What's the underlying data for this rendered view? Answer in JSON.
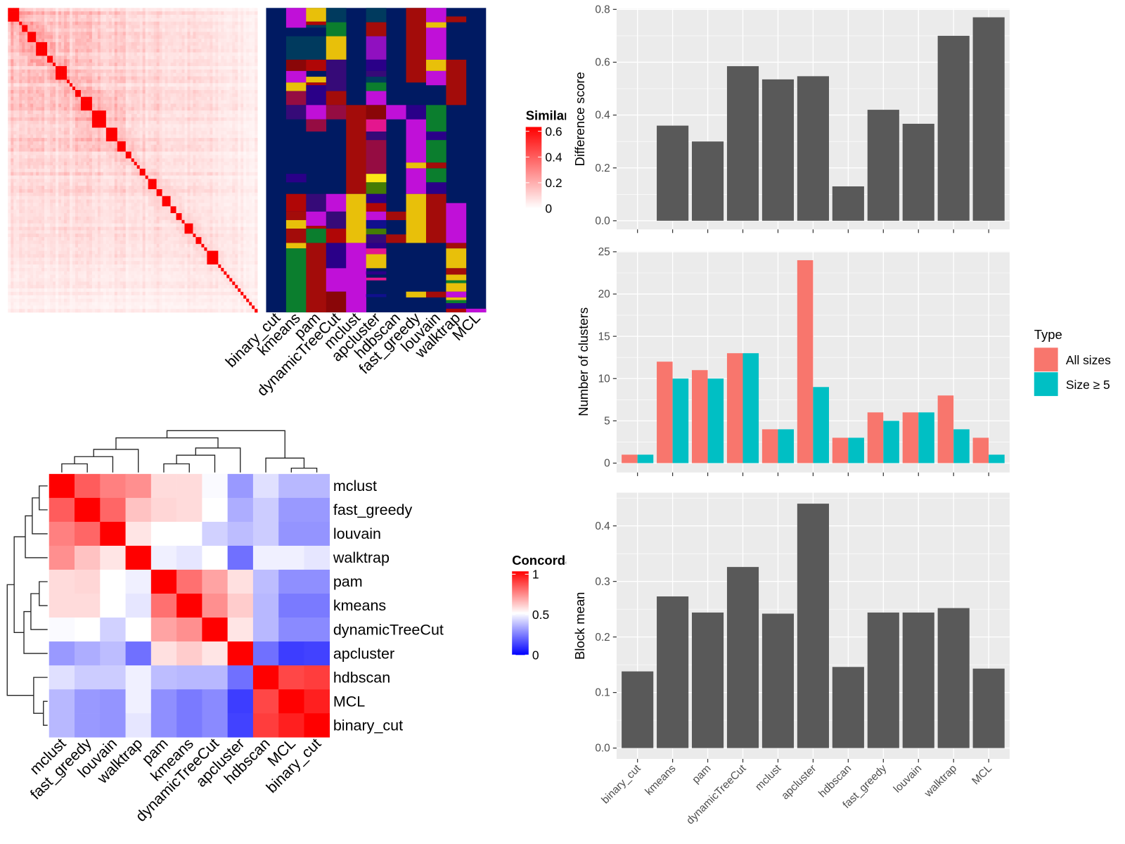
{
  "methods_order": [
    "binary_cut",
    "kmeans",
    "pam",
    "dynamicTreeCut",
    "mclust",
    "apcluster",
    "hdbscan",
    "fast_greedy",
    "louvain",
    "walktrap",
    "MCL"
  ],
  "similarity_legend": {
    "title": "Similarity",
    "ticks": [
      "0.6",
      "0.4",
      "0.2",
      "0"
    ],
    "tick_values": [
      0.6,
      0.4,
      0.2,
      0
    ],
    "colors": [
      "#ffffff",
      "#ff0000"
    ]
  },
  "membership_colors": {
    "N": "#001a62",
    "M": "#c010d8",
    "Y": "#e8c00a",
    "T": "#003a5e",
    "G": "#0b7e2e",
    "R": "#a30c0a",
    "r": "#b00606",
    "D": "#8a0608",
    "P": "#9010c0",
    "I": "#2a0088",
    "V": "#360a78",
    "C": "#950c42",
    "K": "#e4168e",
    "O": "#447c04",
    "B": "#fce616",
    "U": "#10108e"
  },
  "membership_segments_row_percent": {
    "binary_cut": [],
    "kmeans": [
      [
        0,
        6.5,
        "M"
      ],
      [
        9.3,
        17,
        "T"
      ],
      [
        17,
        20.7,
        "D"
      ],
      [
        20.7,
        24.5,
        "M"
      ],
      [
        24.5,
        27.3,
        "Y"
      ],
      [
        27.3,
        31.9,
        "C"
      ],
      [
        31.9,
        36.6,
        "V"
      ],
      [
        54.5,
        57.3,
        "I"
      ],
      [
        61.1,
        66.9,
        "r"
      ],
      [
        66.9,
        69.7,
        "R"
      ],
      [
        69.7,
        72.5,
        "Y"
      ],
      [
        72.5,
        77.2,
        "R"
      ],
      [
        77.2,
        79,
        "Y"
      ],
      [
        79,
        100,
        "G"
      ]
    ],
    "pam": [
      [
        0,
        4.5,
        "Y"
      ],
      [
        4.5,
        5.6,
        "r"
      ],
      [
        5.6,
        6.5,
        "T"
      ],
      [
        9.3,
        17,
        "T"
      ],
      [
        17,
        20.7,
        "r"
      ],
      [
        22.6,
        24.5,
        "Y"
      ],
      [
        24.5,
        25.4,
        "r"
      ],
      [
        25.4,
        31.9,
        "I"
      ],
      [
        31.9,
        36.6,
        "M"
      ],
      [
        36.6,
        40.6,
        "C"
      ],
      [
        61.1,
        66.9,
        "V"
      ],
      [
        66.9,
        71.6,
        "M"
      ],
      [
        71.6,
        72.5,
        "r"
      ],
      [
        72.5,
        77.2,
        "G"
      ],
      [
        77.2,
        100,
        "R"
      ]
    ],
    "dynamicTreeCut": [
      [
        0,
        4.7,
        "T"
      ],
      [
        4.7,
        9.3,
        "G"
      ],
      [
        9.3,
        17,
        "Y"
      ],
      [
        17,
        27.3,
        "V"
      ],
      [
        27.3,
        31.9,
        "R"
      ],
      [
        31.9,
        36.6,
        "C"
      ],
      [
        61.1,
        66.9,
        "M"
      ],
      [
        66.9,
        72.5,
        "V"
      ],
      [
        72.5,
        77.2,
        "r"
      ],
      [
        77.2,
        85.5,
        "I"
      ],
      [
        85.5,
        93.2,
        "M"
      ],
      [
        93.2,
        100,
        "D"
      ]
    ],
    "mclust": [
      [
        31.9,
        61.1,
        "R"
      ],
      [
        61.1,
        77.2,
        "Y"
      ],
      [
        77.2,
        100,
        "M"
      ]
    ],
    "apcluster": [
      [
        0,
        4.7,
        "T"
      ],
      [
        4.7,
        9.3,
        "R"
      ],
      [
        9.3,
        17,
        "P"
      ],
      [
        17,
        20.7,
        "I"
      ],
      [
        20.7,
        22.6,
        "V"
      ],
      [
        22.6,
        24.5,
        "T"
      ],
      [
        24.5,
        27.3,
        "G"
      ],
      [
        27.3,
        31.9,
        "M"
      ],
      [
        31.9,
        36.6,
        "D"
      ],
      [
        36.6,
        40.6,
        "K"
      ],
      [
        40.6,
        43.4,
        "V"
      ],
      [
        43.4,
        54.5,
        "C"
      ],
      [
        54.5,
        57.3,
        "B"
      ],
      [
        57.3,
        61.1,
        "O"
      ],
      [
        61.1,
        64.1,
        "I"
      ],
      [
        64.1,
        66.9,
        "r"
      ],
      [
        66.9,
        69.7,
        "M"
      ],
      [
        69.7,
        72.5,
        "U"
      ],
      [
        72.5,
        74.4,
        "O"
      ],
      [
        74.4,
        77.2,
        "V"
      ],
      [
        77.2,
        79,
        "I"
      ],
      [
        79,
        80.9,
        "K"
      ],
      [
        80.9,
        85.5,
        "Y"
      ],
      [
        86.5,
        87.6,
        "I"
      ],
      [
        88.6,
        89.5,
        "K"
      ],
      [
        94,
        95,
        "U"
      ]
    ],
    "hdbscan": [
      [
        31.9,
        36.6,
        "M"
      ],
      [
        66.9,
        69.7,
        "R"
      ],
      [
        74.4,
        77.2,
        "R"
      ]
    ],
    "fast_greedy": [
      [
        0,
        24.5,
        "R"
      ],
      [
        31.9,
        36.6,
        "I"
      ],
      [
        36.6,
        50.8,
        "M"
      ],
      [
        50.8,
        52.7,
        "Y"
      ],
      [
        52.7,
        61.1,
        "M"
      ],
      [
        61.1,
        77.2,
        "Y"
      ],
      [
        93.2,
        95.1,
        "Y"
      ]
    ],
    "louvain": [
      [
        0,
        4.7,
        "M"
      ],
      [
        4.7,
        6.5,
        "Y"
      ],
      [
        6.5,
        17,
        "M"
      ],
      [
        17,
        20.7,
        "Y"
      ],
      [
        20.7,
        25.4,
        "M"
      ],
      [
        31.9,
        40.6,
        "G"
      ],
      [
        40.6,
        43.4,
        "I"
      ],
      [
        43.4,
        50.8,
        "G"
      ],
      [
        50.8,
        52.7,
        "R"
      ],
      [
        52.7,
        57.3,
        "G"
      ],
      [
        57.3,
        61.1,
        "I"
      ],
      [
        61.1,
        77.2,
        "R"
      ],
      [
        93.2,
        95.1,
        "R"
      ]
    ],
    "walktrap": [
      [
        2.8,
        4.7,
        "R"
      ],
      [
        17,
        31.9,
        "R"
      ],
      [
        64.1,
        77.2,
        "M"
      ],
      [
        77.2,
        79,
        "R"
      ],
      [
        79,
        85.5,
        "Y"
      ],
      [
        85.5,
        87.6,
        "R"
      ],
      [
        87.6,
        89.5,
        "Y"
      ],
      [
        89.5,
        90.4,
        "G"
      ],
      [
        90.4,
        93.2,
        "Y"
      ],
      [
        93.2,
        95.1,
        "M"
      ],
      [
        95.1,
        96,
        "Y"
      ],
      [
        96,
        97,
        "G"
      ],
      [
        97,
        98.8,
        "I"
      ],
      [
        98.8,
        100,
        "r"
      ]
    ],
    "MCL": [
      [
        98.8,
        100,
        "M"
      ]
    ]
  },
  "chart_data": [
    {
      "type": "bar",
      "categories": [
        "binary_cut",
        "kmeans",
        "pam",
        "dynamicTreeCut",
        "mclust",
        "apcluster",
        "hdbscan",
        "fast_greedy",
        "louvain",
        "walktrap",
        "MCL"
      ],
      "values": [
        0,
        0.36,
        0.3,
        0.585,
        0.535,
        0.547,
        0.13,
        0.42,
        0.367,
        0.7,
        0.77
      ],
      "ylabel": "Difference score",
      "ylim": [
        0,
        0.8
      ],
      "yticks": [
        "0.0",
        "0.2",
        "0.4",
        "0.6",
        "0.8"
      ],
      "bar_color": "#595959",
      "grid": true
    },
    {
      "type": "bar",
      "categories": [
        "binary_cut",
        "kmeans",
        "pam",
        "dynamicTreeCut",
        "mclust",
        "apcluster",
        "hdbscan",
        "fast_greedy",
        "louvain",
        "walktrap",
        "MCL"
      ],
      "series": [
        {
          "name": "All sizes",
          "color": "#f8766d",
          "values": [
            1,
            12,
            11,
            13,
            4,
            24,
            3,
            6,
            6,
            8,
            3
          ]
        },
        {
          "name": "Size ≥ 5",
          "color": "#00bfc4",
          "values": [
            1,
            10,
            10,
            13,
            4,
            9,
            3,
            5,
            6,
            4,
            1
          ]
        }
      ],
      "ylabel": "Number of clusters",
      "ylim": [
        0,
        25
      ],
      "yticks": [
        "0",
        "5",
        "10",
        "15",
        "20",
        "25"
      ],
      "legend": {
        "title": "Type",
        "placement": "right"
      },
      "grid": true
    },
    {
      "type": "bar",
      "categories": [
        "binary_cut",
        "kmeans",
        "pam",
        "dynamicTreeCut",
        "mclust",
        "apcluster",
        "hdbscan",
        "fast_greedy",
        "louvain",
        "walktrap",
        "MCL"
      ],
      "values": [
        0.138,
        0.273,
        0.244,
        0.326,
        0.242,
        0.44,
        0.146,
        0.244,
        0.244,
        0.252,
        0.143
      ],
      "ylabel": "Block mean",
      "ylim": [
        0,
        0.46
      ],
      "yticks": [
        "0.0",
        "0.1",
        "0.2",
        "0.3",
        "0.4"
      ],
      "bar_color": "#595959",
      "grid": true
    },
    {
      "type": "heatmap",
      "rows": [
        "mclust",
        "fast_greedy",
        "louvain",
        "walktrap",
        "pam",
        "kmeans",
        "dynamicTreeCut",
        "apcluster",
        "hdbscan",
        "MCL",
        "binary_cut"
      ],
      "columns": [
        "mclust",
        "fast_greedy",
        "louvain",
        "walktrap",
        "pam",
        "kmeans",
        "dynamicTreeCut",
        "apcluster",
        "hdbscan",
        "MCL",
        "binary_cut"
      ],
      "values": [
        [
          1,
          0.82,
          0.75,
          0.72,
          0.57,
          0.57,
          0.49,
          0.3,
          0.44,
          0.36,
          0.36
        ],
        [
          0.82,
          1,
          0.8,
          0.62,
          0.58,
          0.57,
          0.5,
          0.34,
          0.4,
          0.3,
          0.3
        ],
        [
          0.75,
          0.8,
          1,
          0.55,
          0.5,
          0.5,
          0.41,
          0.37,
          0.4,
          0.29,
          0.29
        ],
        [
          0.72,
          0.62,
          0.55,
          1,
          0.47,
          0.45,
          0.5,
          0.22,
          0.47,
          0.47,
          0.45
        ],
        [
          0.57,
          0.58,
          0.5,
          0.47,
          1,
          0.78,
          0.68,
          0.56,
          0.37,
          0.28,
          0.28
        ],
        [
          0.57,
          0.57,
          0.5,
          0.45,
          0.78,
          1,
          0.72,
          0.6,
          0.36,
          0.24,
          0.24
        ],
        [
          0.49,
          0.5,
          0.41,
          0.5,
          0.68,
          0.72,
          1,
          0.55,
          0.36,
          0.27,
          0.27
        ],
        [
          0.3,
          0.34,
          0.37,
          0.22,
          0.56,
          0.6,
          0.55,
          1,
          0.22,
          0.12,
          0.13
        ],
        [
          0.44,
          0.4,
          0.4,
          0.47,
          0.37,
          0.36,
          0.36,
          0.22,
          1,
          0.86,
          0.88
        ],
        [
          0.36,
          0.3,
          0.29,
          0.47,
          0.28,
          0.24,
          0.27,
          0.12,
          0.86,
          1,
          0.94
        ],
        [
          0.36,
          0.3,
          0.29,
          0.45,
          0.28,
          0.24,
          0.27,
          0.13,
          0.88,
          0.94,
          1
        ]
      ],
      "legend": {
        "title": "Concordance",
        "ticks": [
          "1",
          "0.5",
          "0"
        ],
        "tick_values": [
          1,
          0.5,
          0
        ],
        "colors": [
          "#0000ff",
          "#ffffff",
          "#ff0000"
        ]
      },
      "dendrogram": true
    }
  ]
}
